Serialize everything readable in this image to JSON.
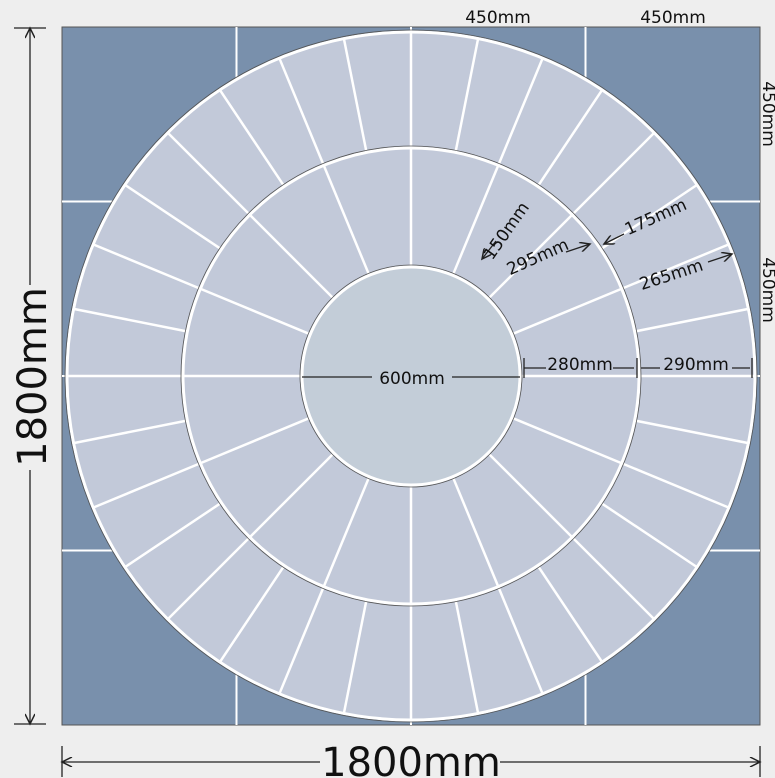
{
  "diagram": {
    "colors": {
      "background": "#eeeeee",
      "outer_square": "#7990ac",
      "ring_slab": "#c2c9d9",
      "center_circle": "#c3cdd8",
      "joint": "#ffffff",
      "outline": "#555555",
      "dimension_line": "#222222"
    },
    "overall": {
      "width_label": "1800mm",
      "height_label": "1800mm"
    },
    "square_slabs": {
      "top_label_1": "450mm",
      "top_label_2": "450mm",
      "side_label_1": "450mm",
      "side_label_2": "450mm"
    },
    "center": {
      "diameter_label": "600mm"
    },
    "inner_ring": {
      "width_label": "280mm",
      "inner_edge_label": "150mm",
      "outer_edge_label": "295mm",
      "slab_count": 16
    },
    "outer_ring": {
      "width_label": "290mm",
      "inner_edge_label": "175mm",
      "outer_edge_label": "265mm",
      "slab_count": 32
    }
  }
}
